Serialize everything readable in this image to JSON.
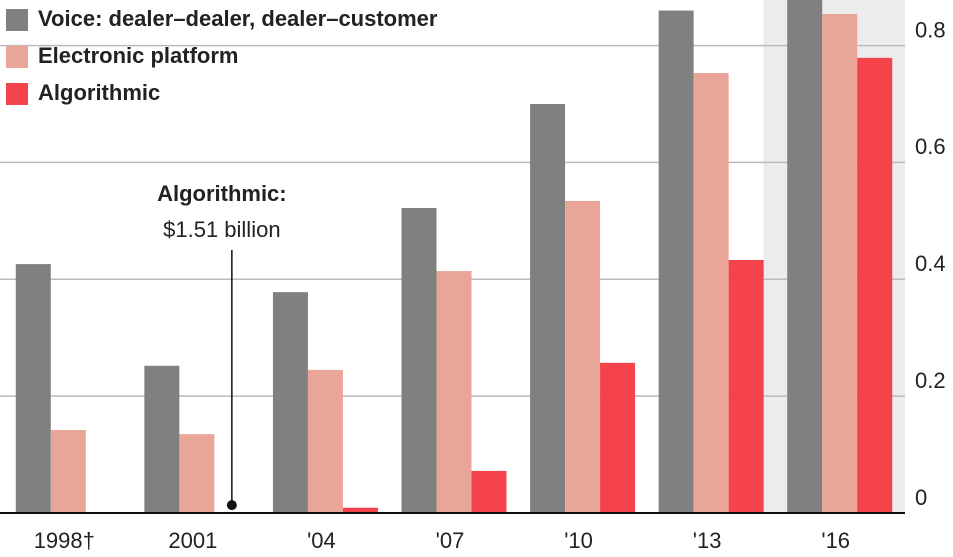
{
  "chart_data": {
    "type": "bar",
    "categories": [
      "1998†",
      "2001",
      "'04",
      "'07",
      "'10",
      "'13",
      "'16"
    ],
    "series": [
      {
        "name": "Voice: dealer–dealer, dealer–customer",
        "color": "#808080",
        "values": [
          0.426,
          0.252,
          0.378,
          0.522,
          0.7,
          0.86,
          0.9
        ]
      },
      {
        "name": "Electronic platform",
        "color": "#e8a598",
        "values": [
          0.142,
          0.135,
          0.245,
          0.414,
          0.534,
          0.753,
          0.854
        ]
      },
      {
        "name": "Algorithmic",
        "color": "#f4434a",
        "values": [
          null,
          0.00151,
          0.009,
          0.072,
          0.257,
          0.433,
          0.779
        ]
      }
    ],
    "annotation": {
      "title": "Algorithmic:",
      "text": "$1.51 billion"
    },
    "ylim": [
      0,
      0.878
    ],
    "yticks": [
      0,
      0.2,
      0.4,
      0.6,
      0.8
    ],
    "grid": true
  }
}
